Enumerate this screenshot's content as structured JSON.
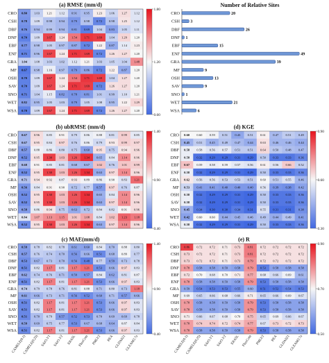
{
  "rows": [
    "CRO",
    "CSH",
    "DBF",
    "DNF",
    "EBF",
    "ENF",
    "GRA",
    "MF",
    "OSH",
    "SAV",
    "SNO",
    "WET",
    "WSA"
  ],
  "products": [
    "CAMELE(0.1)",
    "CAMELE(0.25)",
    "SAtO.V1",
    "SAtO.V2",
    "ERA5L",
    "FluxCom",
    "PMLV2",
    "REA",
    "GLDAS21",
    "GLEAM3.7a"
  ],
  "colors": {
    "low": "#4169e1",
    "mid": "#f7f7f7",
    "high": "#e8141e",
    "bar": "#6f97d6",
    "bar_edge": "#2b4c8c"
  },
  "chart_data": [
    {
      "type": "heatmap",
      "title": "(a) RMSE (mm/d)",
      "bold_first_column": true,
      "colorbar": {
        "min": 0.6,
        "max": 1.8,
        "ticks": [
          "0.60",
          "1.20",
          "1.80"
        ]
      },
      "values": [
        [
          0.8,
          1.03,
          1.21,
          1.12,
          0.91,
          0.95,
          1.23,
          1.06,
          1.27,
          1.12
        ],
        [
          0.78,
          1.09,
          0.98,
          0.94,
          0.79,
          0.98,
          0.72,
          0.98,
          1.25,
          1.12
        ],
        [
          0.76,
          0.94,
          0.99,
          0.94,
          0.81,
          0.69,
          1.04,
          0.83,
          1.05,
          1.11
        ],
        [
          0.7,
          1.09,
          1.67,
          1.24,
          1.54,
          1.71,
          1.69,
          1.04,
          1.29,
          1.2
        ],
        [
          0.77,
          0.98,
          1.05,
          0.97,
          0.87,
          0.72,
          1.22,
          0.87,
          1.14,
          1.23
        ],
        [
          0.71,
          0.96,
          1.67,
          1.24,
          1.71,
          1.69,
          0.72,
          1.26,
          1.27,
          1.2
        ],
        [
          1.04,
          1.08,
          1.03,
          1.02,
          1.12,
          1.21,
          1.03,
          1.05,
          1.04,
          1.48
        ],
        [
          0.67,
          0.98,
          1.16,
          0.97,
          0.79,
          0.86,
          0.72,
          1.22,
          0.87,
          1.2
        ],
        [
          0.7,
          1.09,
          1.67,
          1.24,
          1.54,
          1.71,
          1.69,
          1.04,
          1.27,
          1.2
        ],
        [
          0.7,
          1.09,
          1.67,
          1.24,
          1.71,
          1.69,
          0.72,
          1.26,
          1.27,
          1.2
        ],
        [
          0.71,
          1.04,
          1.15,
          0.82,
          0.78,
          0.81,
          1.01,
          0.99,
          1.1,
          1.21
        ],
        [
          0.82,
          0.95,
          1.05,
          1.03,
          0.79,
          1.05,
          1.08,
          0.95,
          1.22,
          1.29
        ],
        [
          0.7,
          1.09,
          1.67,
          1.24,
          1.71,
          1.69,
          0.72,
          1.26,
          1.27,
          1.2
        ]
      ]
    },
    {
      "type": "bar",
      "orientation": "horizontal",
      "title": "Number of Relative Sites",
      "categories": [
        "CRO",
        "CSH",
        "DBF",
        "DNF",
        "EBF",
        "ENF",
        "GRA",
        "MF",
        "OSH",
        "SAV",
        "SNO",
        "WET",
        "WSA"
      ],
      "values": [
        20,
        3,
        26,
        1,
        15,
        49,
        39,
        9,
        13,
        9,
        1,
        21,
        6
      ],
      "xlim": [
        0,
        55
      ]
    },
    {
      "type": "heatmap",
      "title": "(b) ubRMSE (mm/d)",
      "bold_first_column": true,
      "colorbar": {
        "min": 0.4,
        "max": 1.4,
        "ticks": [
          "0.40",
          "0.90",
          "1.40"
        ]
      },
      "values": [
        [
          0.67,
          0.96,
          0.85,
          0.91,
          0.79,
          0.86,
          0.88,
          0.81,
          0.99,
          0.85
        ],
        [
          0.67,
          0.95,
          0.84,
          0.97,
          0.76,
          0.86,
          0.79,
          0.93,
          0.99,
          0.97
        ],
        [
          0.57,
          0.88,
          0.86,
          0.8,
          0.75,
          0.6,
          0.95,
          0.75,
          0.94,
          0.96
        ],
        [
          0.52,
          0.95,
          1.3,
          1.03,
          1.26,
          1.34,
          0.65,
          0.84,
          1.14,
          0.96
        ],
        [
          0.68,
          0.91,
          0.85,
          0.81,
          0.68,
          0.67,
          1.02,
          0.76,
          1.01,
          0.99
        ],
        [
          0.52,
          0.95,
          1.3,
          1.03,
          1.26,
          1.34,
          0.63,
          0.97,
          1.14,
          0.96
        ],
        [
          0.71,
          0.94,
          0.92,
          0.87,
          0.93,
          0.89,
          0.86,
          0.9,
          0.83,
          1.21
        ],
        [
          0.56,
          0.84,
          0.91,
          0.9,
          0.72,
          0.77,
          0.57,
          0.97,
          0.76,
          0.87
        ],
        [
          0.52,
          0.95,
          1.3,
          1.03,
          1.26,
          1.34,
          0.65,
          0.84,
          1.14,
          0.96
        ],
        [
          0.52,
          0.95,
          1.3,
          1.03,
          1.26,
          1.34,
          0.63,
          0.97,
          1.14,
          0.96
        ],
        [
          0.58,
          0.86,
          0.94,
          0.75,
          0.63,
          0.72,
          0.84,
          0.82,
          0.91,
          0.96
        ],
        [
          0.84,
          1.07,
          1.13,
          1.15,
          1.01,
          1.08,
          0.84,
          1.02,
          1.23,
          1.18
        ],
        [
          0.52,
          0.95,
          1.3,
          1.03,
          1.26,
          1.34,
          0.63,
          0.97,
          1.14,
          0.96
        ]
      ]
    },
    {
      "type": "heatmap",
      "title": "(d) KGE",
      "bold_first_column": true,
      "colorbar": {
        "min": 0.3,
        "max": 0.9,
        "ticks": [
          "0.30",
          "0.60",
          "0.90"
        ]
      },
      "values": [
        [
          0.6,
          0.6,
          0.59,
          0.51,
          0.43,
          0.51,
          0.61,
          0.47,
          0.51,
          0.49
        ],
        [
          0.45,
          0.51,
          0.45,
          0.49,
          0.47,
          0.44,
          0.63,
          0.46,
          0.46,
          0.44
        ],
        [
          0.58,
          0.58,
          0.56,
          0.57,
          0.51,
          0.51,
          0.64,
          0.5,
          0.48,
          0.47
        ],
        [
          0.58,
          0.32,
          0.29,
          0.29,
          0.31,
          0.29,
          0.5,
          0.33,
          0.33,
          0.36
        ],
        [
          0.67,
          0.59,
          0.58,
          0.59,
          0.57,
          0.56,
          0.61,
          0.56,
          0.66,
          0.52
        ],
        [
          0.58,
          0.32,
          0.29,
          0.29,
          0.31,
          0.29,
          0.5,
          0.33,
          0.33,
          0.36
        ],
        [
          0.62,
          0.56,
          0.56,
          0.53,
          0.53,
          0.51,
          0.6,
          0.51,
          0.55,
          0.46
        ],
        [
          0.53,
          0.41,
          0.41,
          0.4,
          0.4,
          0.4,
          0.56,
          0.39,
          0.38,
          0.42
        ],
        [
          0.58,
          0.32,
          0.29,
          0.29,
          0.31,
          0.29,
          0.5,
          0.33,
          0.33,
          0.36
        ],
        [
          0.58,
          0.32,
          0.29,
          0.29,
          0.31,
          0.29,
          0.5,
          0.33,
          0.33,
          0.36
        ],
        [
          0.45,
          0.34,
          0.3,
          0.3,
          0.34,
          0.31,
          0.55,
          0.31,
          0.31,
          0.38
        ],
        [
          0.42,
          0.6,
          0.6,
          0.44,
          0.45,
          0.46,
          0.49,
          0.44,
          0.49,
          0.41
        ],
        [
          0.58,
          0.32,
          0.29,
          0.29,
          0.31,
          0.29,
          0.5,
          0.33,
          0.33,
          0.36
        ]
      ]
    },
    {
      "type": "heatmap",
      "title": "(c) MAE(mm/d)",
      "bold_first_column": true,
      "colorbar": {
        "min": 0.4,
        "max": 1.4,
        "ticks": [
          "0.40",
          "0.90",
          "1.40"
        ]
      },
      "values": [
        [
          0.59,
          0.78,
          0.82,
          0.78,
          0.61,
          0.6,
          0.84,
          0.7,
          0.88,
          0.8
        ],
        [
          0.57,
          0.76,
          0.74,
          0.7,
          0.56,
          0.66,
          0.51,
          0.68,
          0.89,
          0.77
        ],
        [
          0.53,
          0.67,
          0.73,
          0.7,
          0.56,
          0.48,
          0.77,
          0.59,
          0.73,
          0.78
        ],
        [
          0.51,
          0.82,
          1.17,
          0.81,
          1.17,
          1.21,
          0.53,
          0.66,
          0.97,
          0.83
        ],
        [
          0.62,
          0.74,
          0.76,
          0.71,
          0.59,
          0.57,
          0.84,
          0.62,
          0.81,
          0.87
        ],
        [
          0.51,
          0.82,
          1.17,
          0.81,
          1.17,
          1.21,
          0.53,
          0.66,
          0.97,
          0.83
        ],
        [
          0.74,
          0.79,
          0.78,
          0.76,
          0.81,
          0.88,
          0.71,
          0.8,
          0.73,
          1.18
        ],
        [
          0.61,
          0.66,
          0.73,
          0.71,
          0.56,
          0.52,
          0.6,
          0.71,
          0.57,
          0.66
        ],
        [
          0.51,
          0.82,
          1.17,
          0.81,
          1.17,
          1.21,
          0.53,
          0.66,
          0.97,
          0.83
        ],
        [
          0.51,
          0.82,
          1.17,
          0.81,
          1.17,
          1.21,
          0.53,
          0.66,
          0.97,
          0.83
        ],
        [
          0.51,
          0.7,
          0.79,
          0.57,
          0.52,
          0.53,
          0.7,
          0.69,
          0.69,
          0.78
        ],
        [
          0.59,
          0.69,
          0.75,
          0.77,
          0.53,
          0.67,
          0.68,
          0.64,
          0.87,
          0.84
        ],
        [
          0.51,
          0.82,
          1.17,
          0.81,
          1.17,
          1.21,
          0.53,
          0.66,
          0.97,
          0.83
        ]
      ]
    },
    {
      "type": "heatmap",
      "title": "(e) R",
      "bold_first_column": false,
      "colorbar": {
        "min": 0.5,
        "max": 0.9,
        "ticks": [
          "0.50",
          "0.70",
          "0.90"
        ]
      },
      "values": [
        [
          0.86,
          0.72,
          0.72,
          0.71,
          0.73,
          0.81,
          0.72,
          0.72,
          0.72,
          0.72
        ],
        [
          0.73,
          0.72,
          0.72,
          0.71,
          0.73,
          0.81,
          0.72,
          0.72,
          0.72,
          0.72
        ],
        [
          0.73,
          0.72,
          0.72,
          0.71,
          0.73,
          0.79,
          0.72,
          0.72,
          0.72,
          0.72
        ],
        [
          0.78,
          0.58,
          0.58,
          0.59,
          0.58,
          0.79,
          0.53,
          0.58,
          0.58,
          0.58
        ],
        [
          0.72,
          0.7,
          0.68,
          0.7,
          0.71,
          0.77,
          0.68,
          0.66,
          0.69,
          0.61
        ],
        [
          0.78,
          0.58,
          0.58,
          0.59,
          0.58,
          0.79,
          0.53,
          0.58,
          0.58,
          0.58
        ],
        [
          0.59,
          0.54,
          0.53,
          0.53,
          0.55,
          0.6,
          0.51,
          0.52,
          0.54,
          0.53
        ],
        [
          0.69,
          0.65,
          0.66,
          0.68,
          0.66,
          0.71,
          0.65,
          0.66,
          0.69,
          0.67
        ],
        [
          0.78,
          0.58,
          0.58,
          0.59,
          0.58,
          0.79,
          0.53,
          0.58,
          0.58,
          0.58
        ],
        [
          0.78,
          0.58,
          0.58,
          0.59,
          0.58,
          0.79,
          0.53,
          0.58,
          0.58,
          0.58
        ],
        [
          0.71,
          0.66,
          0.67,
          0.68,
          0.7,
          0.75,
          0.65,
          0.69,
          0.66,
          0.67
        ],
        [
          0.78,
          0.74,
          0.74,
          0.72,
          0.74,
          0.77,
          0.67,
          0.73,
          0.72,
          0.73
        ],
        [
          0.78,
          0.58,
          0.58,
          0.59,
          0.58,
          0.79,
          0.53,
          0.58,
          0.58,
          0.58
        ]
      ]
    }
  ]
}
